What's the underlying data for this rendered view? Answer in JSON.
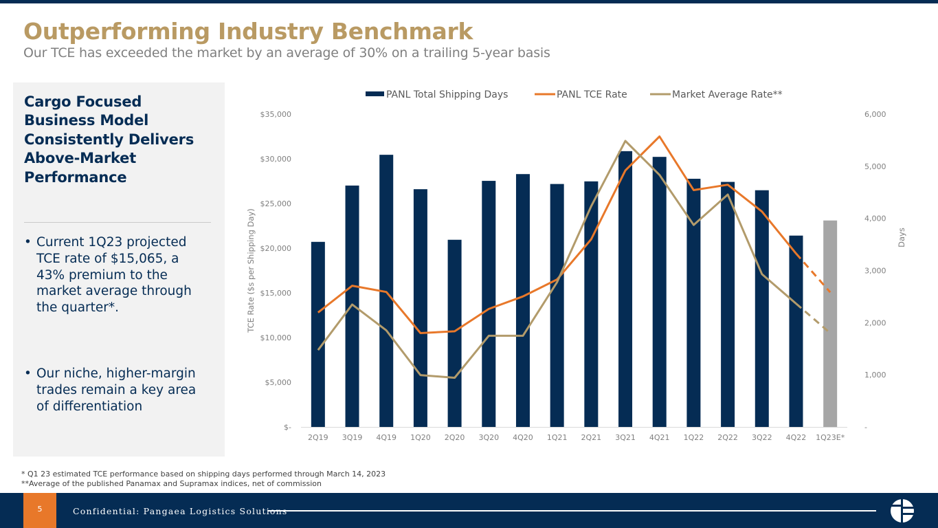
{
  "header": {
    "title": "Outperforming Industry Benchmark",
    "subtitle": "Our TCE has exceeded the market by an average of 30% on a trailing 5-year basis"
  },
  "side_panel": {
    "heading": "Cargo Focused Business Model Consistently Delivers Above-Market Performance",
    "bullet_symbol": "•",
    "bullets": [
      "Current 1Q23 projected TCE rate of $15,065, a 43% premium to the market average through the quarter*.",
      "Our niche, higher-margin trades remain a key area of differentiation"
    ]
  },
  "colors": {
    "navy": "#052c54",
    "gold": "#b99a63",
    "orange": "#e8782a",
    "tan": "#b29b6b",
    "estimate_bar": "#a6a6a6"
  },
  "chart_data": {
    "type": "bar",
    "title": "",
    "categories": [
      "2Q19",
      "3Q19",
      "4Q19",
      "1Q20",
      "2Q20",
      "3Q20",
      "4Q20",
      "1Q21",
      "2Q21",
      "3Q21",
      "4Q21",
      "1Q22",
      "2Q22",
      "3Q22",
      "4Q22",
      "1Q23E*"
    ],
    "ylabel": "TCE Rate ($s per Shipping Day)",
    "y2label": "Days",
    "ylim": [
      0,
      35000
    ],
    "y2lim": [
      0,
      6000
    ],
    "y_ticks": [
      "$-",
      "$5,000",
      "$10,000",
      "$15,000",
      "$20,000",
      "$25,000",
      "$30,000",
      "$35,000"
    ],
    "y2_ticks": [
      "-",
      "1,000",
      "2,000",
      "3,000",
      "4,000",
      "5,000",
      "6,000"
    ],
    "grid": false,
    "legend_position": "top",
    "series": [
      {
        "name": "PANL Total Shipping Days",
        "type": "bar",
        "axis": "right",
        "values": [
          3550,
          4630,
          5220,
          4560,
          3590,
          4720,
          4850,
          4660,
          4710,
          5290,
          5180,
          4760,
          4700,
          4540,
          3670,
          3960
        ],
        "estimated_from_index": 15
      },
      {
        "name": "PANL TCE Rate",
        "type": "line",
        "axis": "left",
        "values": [
          12800,
          15800,
          15100,
          10500,
          10700,
          13200,
          14600,
          16500,
          21000,
          28700,
          32500,
          26500,
          27100,
          24100,
          19400,
          15065
        ],
        "dashed_from_index": 14
      },
      {
        "name": "Market Average Rate**",
        "type": "line",
        "axis": "left",
        "values": [
          8600,
          13700,
          10800,
          5800,
          5500,
          10200,
          10200,
          16200,
          24700,
          32000,
          28200,
          22600,
          26000,
          17100,
          13800,
          10500
        ],
        "dashed_from_index": 14
      }
    ]
  },
  "footnotes": [
    "* Q1 23 estimated TCE performance based on shipping days performed through March 14, 2023",
    "**Average of the published Panamax and Supramax indices, net of commission"
  ],
  "footer": {
    "page_number": "5",
    "confidential": "Confidential: Pangaea Logistics Solutions"
  }
}
